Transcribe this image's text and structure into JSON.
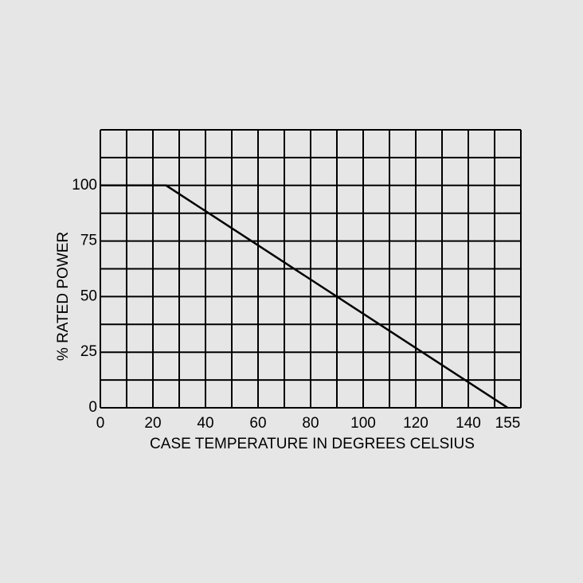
{
  "chart_data": {
    "type": "line",
    "x_label": "CASE TEMPERATURE IN DEGREES CELSIUS",
    "y_label": "% RATED POWER",
    "x": [
      0,
      25,
      155
    ],
    "series": [
      {
        "color": "#000000",
        "values": [
          100,
          100,
          0
        ]
      }
    ],
    "xlim": [
      0,
      160
    ],
    "ylim": [
      0,
      125
    ],
    "xticks": [
      0,
      20,
      40,
      60,
      80,
      100,
      120,
      140,
      155
    ],
    "yticks": [
      0,
      25,
      50,
      75,
      100
    ],
    "xgrid": [
      0,
      10,
      20,
      30,
      40,
      50,
      60,
      70,
      80,
      90,
      100,
      110,
      120,
      130,
      140,
      150,
      160
    ],
    "ygrid": [
      0,
      12.5,
      25,
      37.5,
      50,
      62.5,
      75,
      87.5,
      100,
      112.5,
      125
    ],
    "grid": true
  }
}
